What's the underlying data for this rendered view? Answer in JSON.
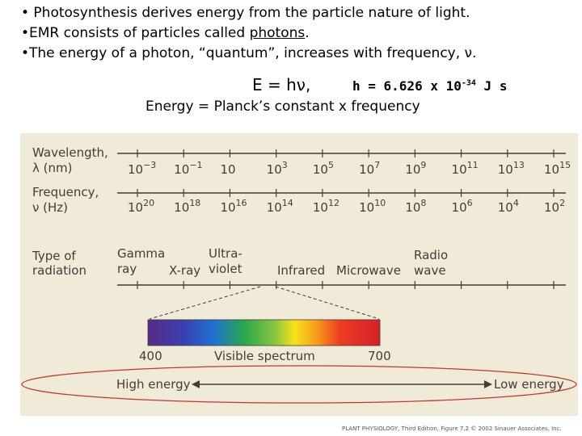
{
  "bullets": [
    "• Photosynthesis derives energy from the particle nature of light.",
    "•EMR consists of particles called",
    "photons",
    ".",
    "•The energy of a photon, “quantum”, increases with frequency, ν."
  ],
  "equation": "E = hν,",
  "planck_constant": {
    "prefix": "h = 6.626 x 10",
    "exponent": "-34",
    "unit": " J s"
  },
  "planck_caption": "Energy = Planck’s constant x frequency",
  "figure": {
    "wavelength_label": [
      "Wavelength,",
      "λ (nm)"
    ],
    "wavelength_values": [
      {
        "base": "10",
        "exp": "−3"
      },
      {
        "base": "10",
        "exp": "−1"
      },
      {
        "base": "10",
        "exp": ""
      },
      {
        "base": "10",
        "exp": "3"
      },
      {
        "base": "10",
        "exp": "5"
      },
      {
        "base": "10",
        "exp": "7"
      },
      {
        "base": "10",
        "exp": "9"
      },
      {
        "base": "10",
        "exp": "11"
      },
      {
        "base": "10",
        "exp": "13"
      },
      {
        "base": "10",
        "exp": "15"
      }
    ],
    "frequency_label": [
      "Frequency,",
      "ν (Hz)"
    ],
    "frequency_values": [
      {
        "base": "10",
        "exp": "20"
      },
      {
        "base": "10",
        "exp": "18"
      },
      {
        "base": "10",
        "exp": "16"
      },
      {
        "base": "10",
        "exp": "14"
      },
      {
        "base": "10",
        "exp": "12"
      },
      {
        "base": "10",
        "exp": "10"
      },
      {
        "base": "10",
        "exp": "8"
      },
      {
        "base": "10",
        "exp": "6"
      },
      {
        "base": "10",
        "exp": "4"
      },
      {
        "base": "10",
        "exp": "2"
      }
    ],
    "type_label": [
      "Type of",
      "radiation"
    ],
    "radiation_types": {
      "gamma": [
        "Gamma",
        "ray"
      ],
      "xray": "X-ray",
      "ultraviolet": [
        "Ultra-",
        "violet"
      ],
      "infrared": "Infrared",
      "microwave": "Microwave",
      "radio": [
        "Radio",
        "wave"
      ]
    },
    "visible": {
      "start": "400",
      "label": "Visible spectrum",
      "end": "700"
    },
    "energy": {
      "high": "High energy",
      "low": "Low energy"
    },
    "colors": {
      "background": "#f0ead9",
      "highlight_ellipse": "#c0392b",
      "text": "#4a3a34"
    }
  },
  "credit": "PLANT PHYSIOLOGY, Third Edition, Figure 7.2 © 2002 Sinauer Associates, Inc."
}
